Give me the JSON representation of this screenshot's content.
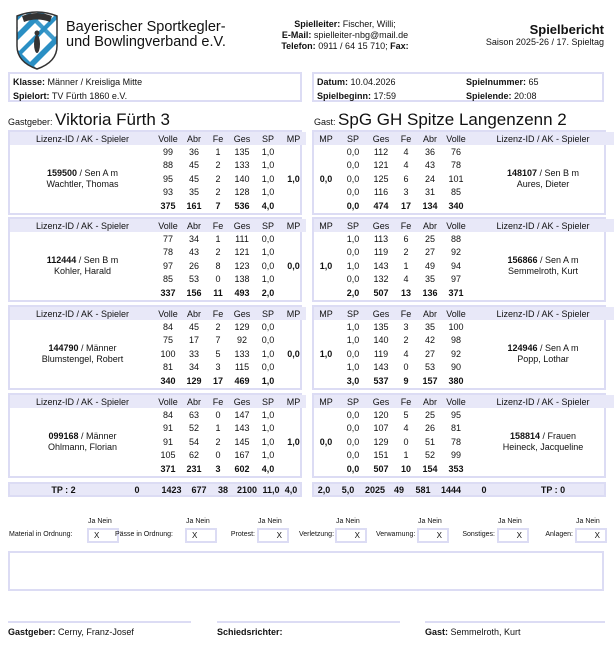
{
  "header": {
    "org_line1": "Bayerischer Sportkegler-",
    "org_line2": "und Bowlingverband e.V.",
    "spielleiter_label": "Spielleiter:",
    "spielleiter": "Fischer, Willi;",
    "email_label": "E-Mail:",
    "email": "spielleiter-nbg@mail.de",
    "telefon_label": "Telefon:",
    "telefon": "0911 / 64 15 710;",
    "fax_label": "Fax:",
    "title": "Spielbericht",
    "subtitle": "Saison 2025-26 / 17. Spieltag"
  },
  "info": {
    "klasse_label": "Klasse:",
    "klasse": "Männer / Kreisliga Mitte",
    "spielort_label": "Spielort:",
    "spielort": "TV Fürth 1860 e.V.",
    "datum_label": "Datum:",
    "datum": "10.04.2026",
    "beginn_label": "Spielbeginn:",
    "beginn": "17:59",
    "nummer_label": "Spielnummer:",
    "nummer": "65",
    "ende_label": "Spielende:",
    "ende": "20:08"
  },
  "columns": {
    "lizenz": "Lizenz-ID / AK - Spieler",
    "volle": "Volle",
    "abr": "Abr",
    "fe": "Fe",
    "ges": "Ges",
    "sp": "SP",
    "mp": "MP"
  },
  "home": {
    "label": "Gastgeber:",
    "name": "Viktoria Fürth 3",
    "players": [
      {
        "id": "159500",
        "ak": " / Sen A m",
        "name": "Wachtler, Thomas",
        "mp": "1,0",
        "games": [
          [
            "99",
            "36",
            "1",
            "135",
            "1,0"
          ],
          [
            "88",
            "45",
            "2",
            "133",
            "1,0"
          ],
          [
            "95",
            "45",
            "2",
            "140",
            "1,0"
          ],
          [
            "93",
            "35",
            "2",
            "128",
            "1,0"
          ]
        ],
        "total": [
          "375",
          "161",
          "7",
          "536",
          "4,0"
        ]
      },
      {
        "id": "112444",
        "ak": " / Sen B m",
        "name": "Kohler, Harald",
        "mp": "0,0",
        "games": [
          [
            "77",
            "34",
            "1",
            "111",
            "0,0"
          ],
          [
            "78",
            "43",
            "2",
            "121",
            "1,0"
          ],
          [
            "97",
            "26",
            "8",
            "123",
            "0,0"
          ],
          [
            "85",
            "53",
            "0",
            "138",
            "1,0"
          ]
        ],
        "total": [
          "337",
          "156",
          "11",
          "493",
          "2,0"
        ]
      },
      {
        "id": "144790",
        "ak": " / Männer",
        "name": "Blumstengel, Robert",
        "mp": "0,0",
        "games": [
          [
            "84",
            "45",
            "2",
            "129",
            "0,0"
          ],
          [
            "75",
            "17",
            "7",
            "92",
            "0,0"
          ],
          [
            "100",
            "33",
            "5",
            "133",
            "1,0"
          ],
          [
            "81",
            "34",
            "3",
            "115",
            "0,0"
          ]
        ],
        "total": [
          "340",
          "129",
          "17",
          "469",
          "1,0"
        ]
      },
      {
        "id": "099168",
        "ak": " / Männer",
        "name": "Ohlmann, Florian",
        "mp": "1,0",
        "games": [
          [
            "84",
            "63",
            "0",
            "147",
            "1,0"
          ],
          [
            "91",
            "52",
            "1",
            "143",
            "1,0"
          ],
          [
            "91",
            "54",
            "2",
            "145",
            "1,0"
          ],
          [
            "105",
            "62",
            "0",
            "167",
            "1,0"
          ]
        ],
        "total": [
          "371",
          "231",
          "3",
          "602",
          "4,0"
        ]
      }
    ],
    "summary": {
      "tp": "TP : 2",
      "zero": "0",
      "volle": "1423",
      "abr": "677",
      "fe": "38",
      "ges": "2100",
      "sp": "11,0",
      "mp": "4,0"
    }
  },
  "guest": {
    "label": "Gast:",
    "name": "SpG GH Spitze Langenzenn 2",
    "players": [
      {
        "id": "148107",
        "ak": " / Sen B m",
        "name": "Aures, Dieter",
        "mp": "0,0",
        "games": [
          [
            "76",
            "36",
            "4",
            "112",
            "0,0"
          ],
          [
            "78",
            "43",
            "4",
            "121",
            "0,0"
          ],
          [
            "101",
            "24",
            "6",
            "125",
            "0,0"
          ],
          [
            "85",
            "31",
            "3",
            "116",
            "0,0"
          ]
        ],
        "total": [
          "340",
          "134",
          "17",
          "474",
          "0,0"
        ]
      },
      {
        "id": "156866",
        "ak": " / Sen A m",
        "name": "Semmelroth, Kurt",
        "mp": "1,0",
        "games": [
          [
            "88",
            "25",
            "6",
            "113",
            "1,0"
          ],
          [
            "92",
            "27",
            "2",
            "119",
            "0,0"
          ],
          [
            "94",
            "49",
            "1",
            "143",
            "1,0"
          ],
          [
            "97",
            "35",
            "4",
            "132",
            "0,0"
          ]
        ],
        "total": [
          "371",
          "136",
          "13",
          "507",
          "2,0"
        ]
      },
      {
        "id": "124946",
        "ak": " / Sen A m",
        "name": "Popp, Lothar",
        "mp": "1,0",
        "games": [
          [
            "100",
            "35",
            "3",
            "135",
            "1,0"
          ],
          [
            "98",
            "42",
            "2",
            "140",
            "1,0"
          ],
          [
            "92",
            "27",
            "4",
            "119",
            "0,0"
          ],
          [
            "90",
            "53",
            "0",
            "143",
            "1,0"
          ]
        ],
        "total": [
          "380",
          "157",
          "9",
          "537",
          "3,0"
        ]
      },
      {
        "id": "158814",
        "ak": " / Frauen",
        "name": "Heineck, Jacqueline",
        "mp": "0,0",
        "games": [
          [
            "95",
            "25",
            "5",
            "120",
            "0,0"
          ],
          [
            "81",
            "26",
            "4",
            "107",
            "0,0"
          ],
          [
            "78",
            "51",
            "0",
            "129",
            "0,0"
          ],
          [
            "99",
            "52",
            "1",
            "151",
            "0,0"
          ]
        ],
        "total": [
          "353",
          "154",
          "10",
          "507",
          "0,0"
        ]
      }
    ],
    "summary": {
      "tp": "TP : 0",
      "zero": "0",
      "volle": "1444",
      "abr": "581",
      "fe": "49",
      "ges": "2025",
      "sp": "5,0",
      "mp": "2,0"
    }
  },
  "checks": {
    "ja_nein": "Ja Nein",
    "items": [
      {
        "label": "Material in Ordnung:",
        "value": "X",
        "pos": "ja"
      },
      {
        "label": "Pässe in Ordnung:",
        "value": "X",
        "pos": "ja"
      },
      {
        "label": "Protest:",
        "value": "X",
        "pos": "nein"
      },
      {
        "label": "Verletzung:",
        "value": "X",
        "pos": "nein"
      },
      {
        "label": "Verwarnung:",
        "value": "X",
        "pos": "nein"
      },
      {
        "label": "Sonstiges:",
        "value": "X",
        "pos": "nein"
      },
      {
        "label": "Anlagen:",
        "value": "X",
        "pos": "nein"
      }
    ]
  },
  "signatures": {
    "home_label": "Gastgeber:",
    "home": "Cerny, Franz-Josef",
    "ref_label": "Schiedsrichter:",
    "guest_label": "Gast:",
    "guest": "Semmelroth, Kurt"
  },
  "colors": {
    "border": "#dcdcf4",
    "header_bg": "#e8e8f8",
    "logo_blue": "#2a8fc4"
  }
}
